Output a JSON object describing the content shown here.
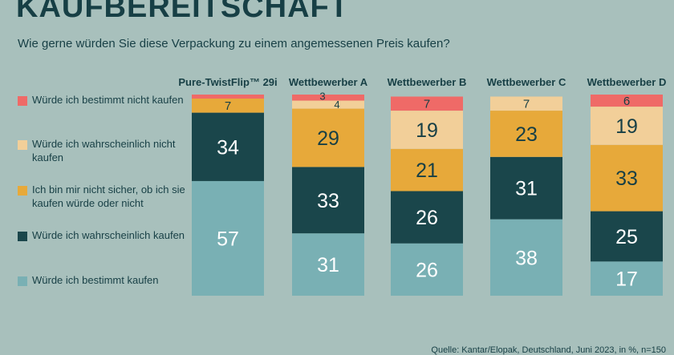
{
  "header": {
    "title": "KAUFBEREITSCHAFT",
    "subtitle": "Wie gerne würden Sie diese Verpackung zu einem angemessenen Preis kaufen?"
  },
  "source": "Quelle: Kantar/Elopak, Deutschland, Juni 2023, in %, n=150",
  "chart_data": {
    "type": "bar",
    "stacked": true,
    "unit": "%",
    "categories": [
      "Pure-TwistFlip™ 29i",
      "Wettbewerber A",
      "Wettbewerber B",
      "Wettbewerber C",
      "Wettbewerber D"
    ],
    "series": [
      {
        "name": "Würde ich bestimmt kaufen",
        "color": "#79b0b4",
        "label_color": "#ffffff",
        "values": [
          57,
          31,
          26,
          38,
          17
        ]
      },
      {
        "name": "Würde ich wahrscheinlich kaufen",
        "color": "#1a464b",
        "label_color": "#ffffff",
        "values": [
          34,
          33,
          26,
          31,
          25
        ]
      },
      {
        "name": "Ich bin mir nicht sicher, ob ich sie kaufen würde oder nicht",
        "color": "#e7a93a",
        "label_color": "#173f45",
        "values": [
          7,
          29,
          21,
          23,
          33
        ]
      },
      {
        "name": "Würde ich wahrscheinlich nicht kaufen",
        "color": "#f2cf99",
        "label_color": "#173f45",
        "values": [
          0,
          4,
          19,
          7,
          19
        ]
      },
      {
        "name": "Würde ich bestimmt nicht kaufen",
        "color": "#ef6a67",
        "label_color": "#173f45",
        "values": [
          2,
          3,
          7,
          0,
          6
        ]
      }
    ],
    "data_labels": [
      [
        "57",
        "31",
        "26",
        "38",
        "17"
      ],
      [
        "34",
        "33",
        "26",
        "31",
        "25"
      ],
      [
        "7",
        "29",
        "21",
        "23",
        "33"
      ],
      [
        "",
        "4",
        "19",
        "7",
        "19"
      ],
      [
        "",
        "3",
        "7",
        "",
        "6"
      ]
    ],
    "legend_order_top_to_bottom": [
      "Würde ich bestimmt nicht kaufen",
      "Würde ich wahrscheinlich nicht kaufen",
      "Ich bin mir nicht sicher, ob ich sie kaufen würde oder nicht",
      "Würde ich wahrscheinlich kaufen",
      "Würde ich bestimmt kaufen"
    ],
    "legend_placement": "left",
    "ylim": [
      0,
      100
    ],
    "grid": false
  }
}
